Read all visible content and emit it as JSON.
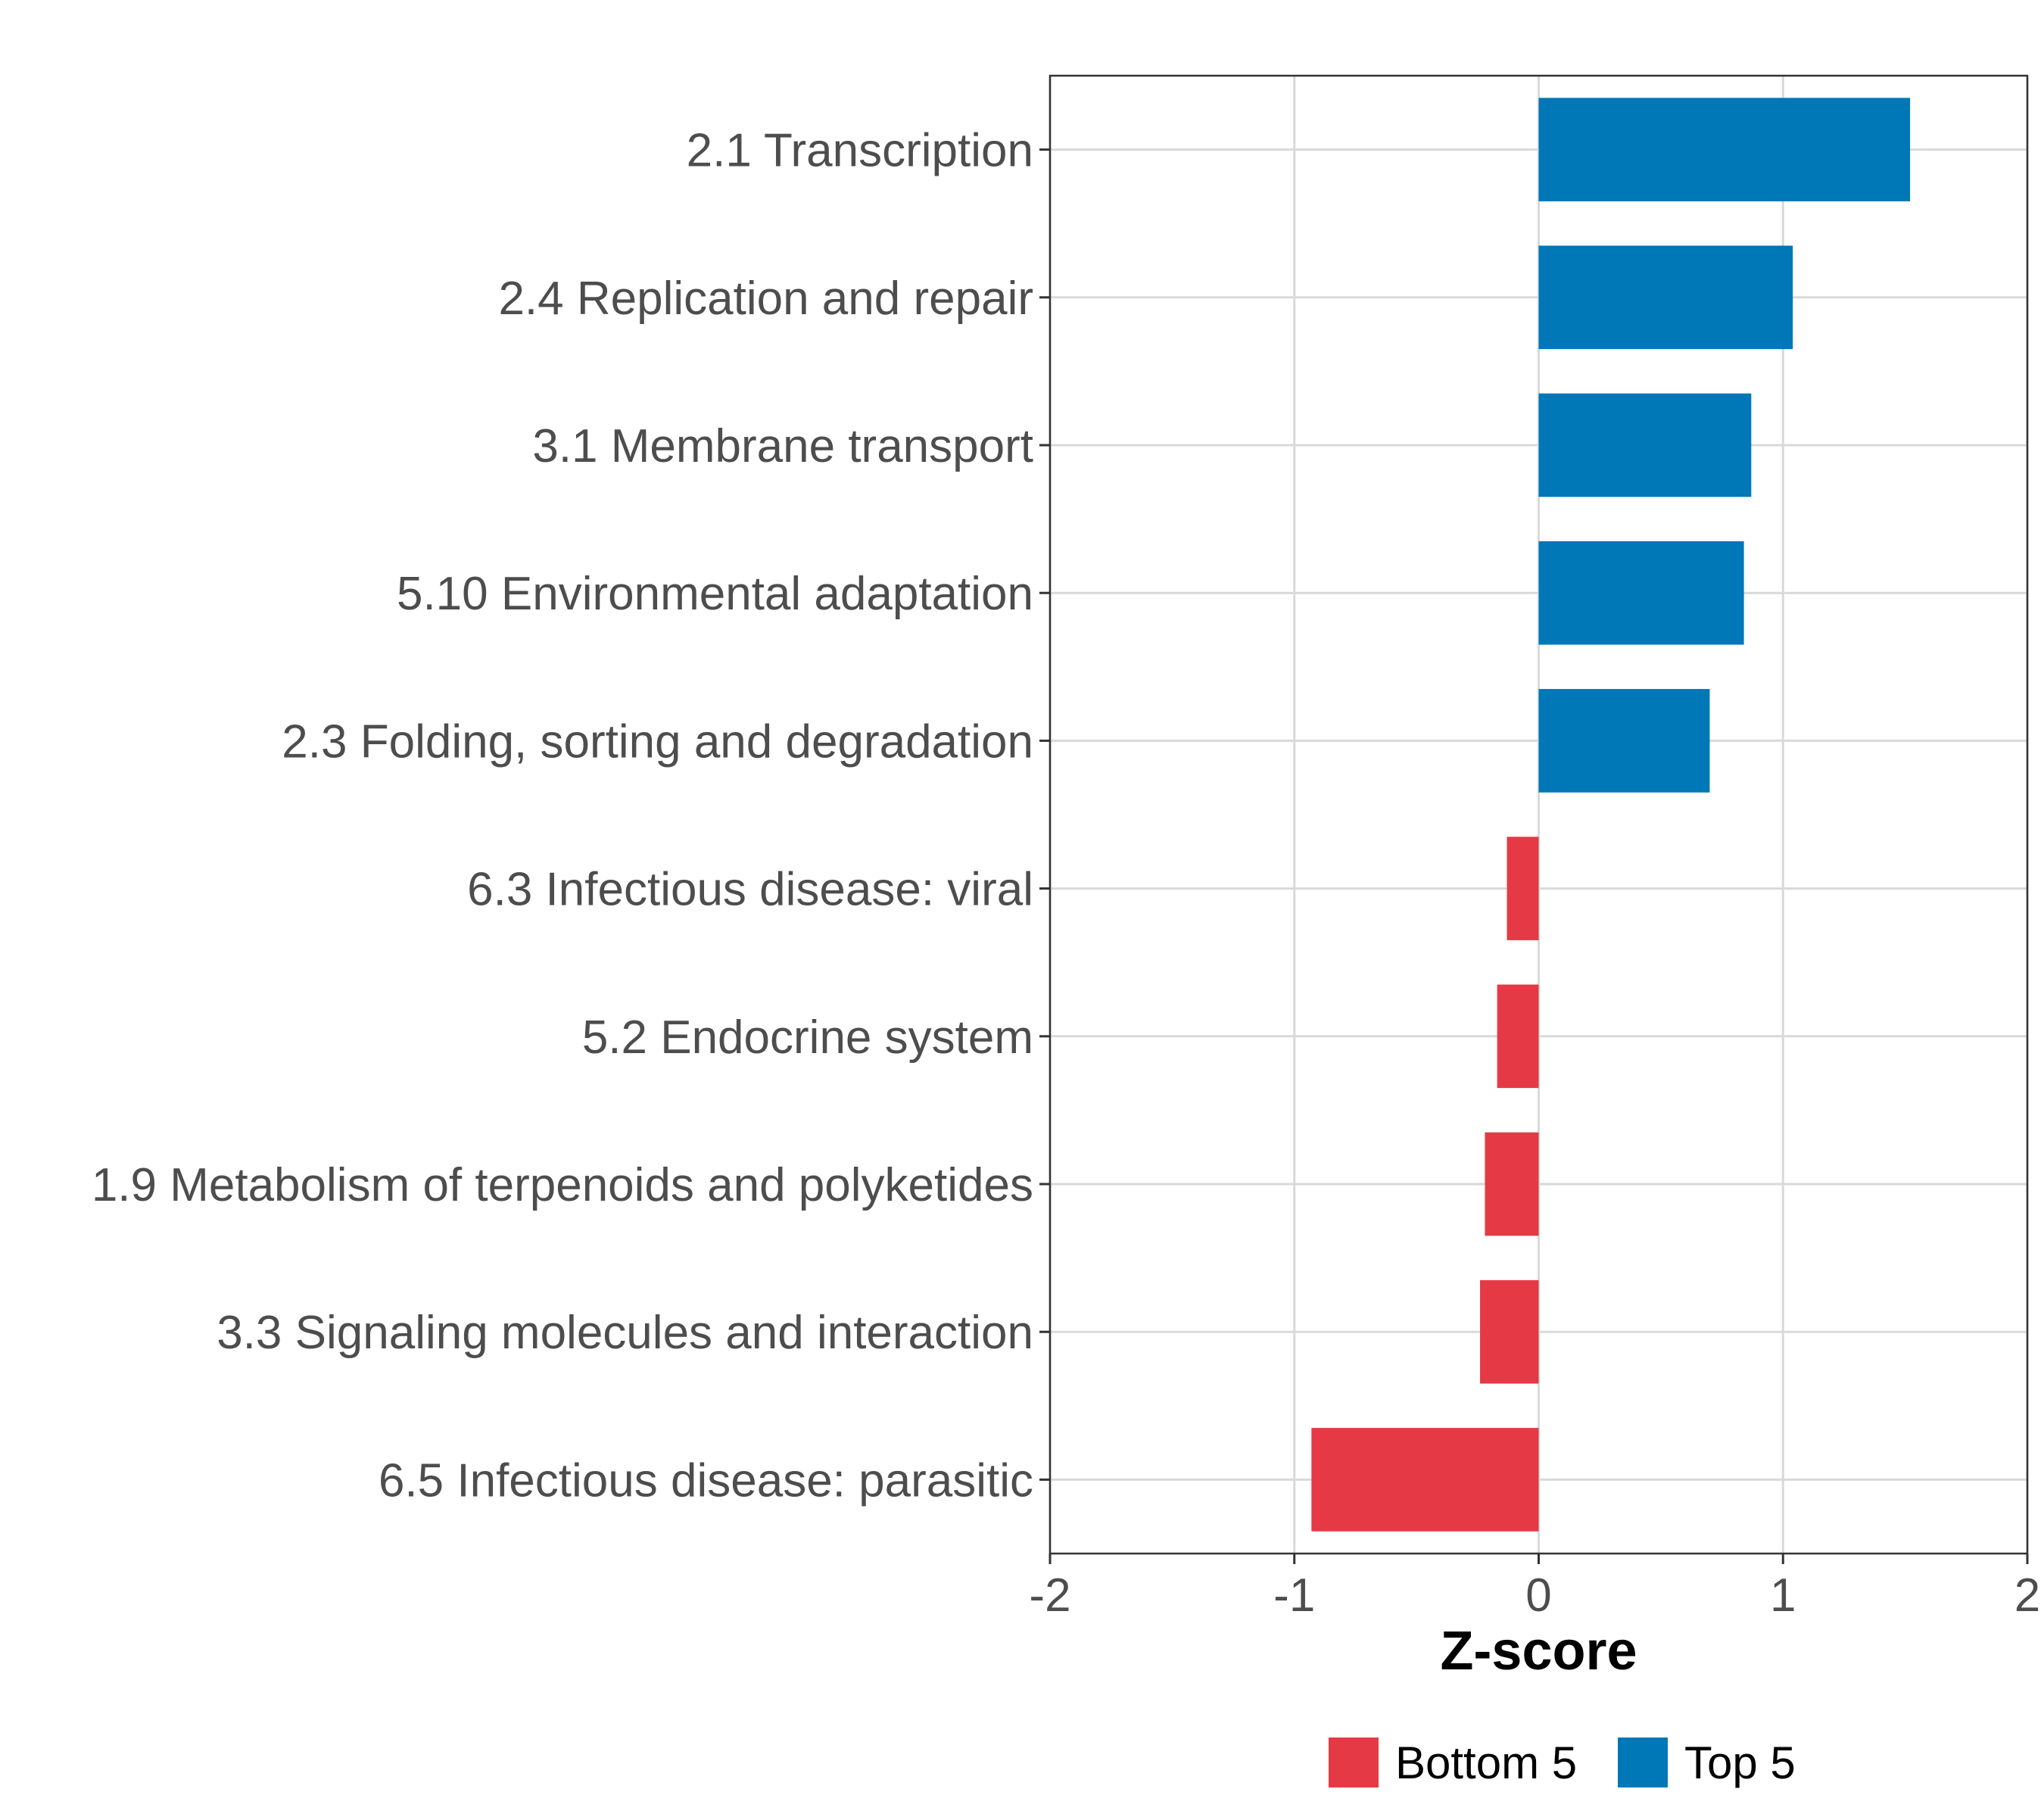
{
  "chart_data": {
    "type": "bar",
    "orientation": "horizontal",
    "title": "",
    "xlabel": "Z-score",
    "ylabel": "",
    "xlim": [
      -2,
      2
    ],
    "xticks": [
      "-2",
      "-1",
      "0",
      "1",
      "2"
    ],
    "xtick_values": [
      -2,
      -1,
      0,
      1,
      2
    ],
    "grid": true,
    "legend_position": "bottom",
    "categories": [
      "2.1 Transcription",
      "2.4 Replication and repair",
      "3.1 Membrane transport",
      "5.10 Environmental adaptation",
      "2.3 Folding, sorting and degradation",
      "6.3 Infectious disease: viral",
      "5.2 Endocrine system",
      "1.9 Metabolism of terpenoids and polyketides",
      "3.3 Signaling molecules and interaction",
      "6.5 Infectious disease: parasitic"
    ],
    "values": [
      1.52,
      1.04,
      0.87,
      0.84,
      0.7,
      -0.13,
      -0.17,
      -0.22,
      -0.24,
      -0.93
    ],
    "groups": [
      "Top 5",
      "Top 5",
      "Top 5",
      "Top 5",
      "Top 5",
      "Bottom 5",
      "Bottom 5",
      "Bottom 5",
      "Bottom 5",
      "Bottom 5"
    ],
    "legend": [
      {
        "name": "Bottom 5",
        "color": "#e63946"
      },
      {
        "name": "Top 5",
        "color": "#0077b6"
      }
    ]
  }
}
